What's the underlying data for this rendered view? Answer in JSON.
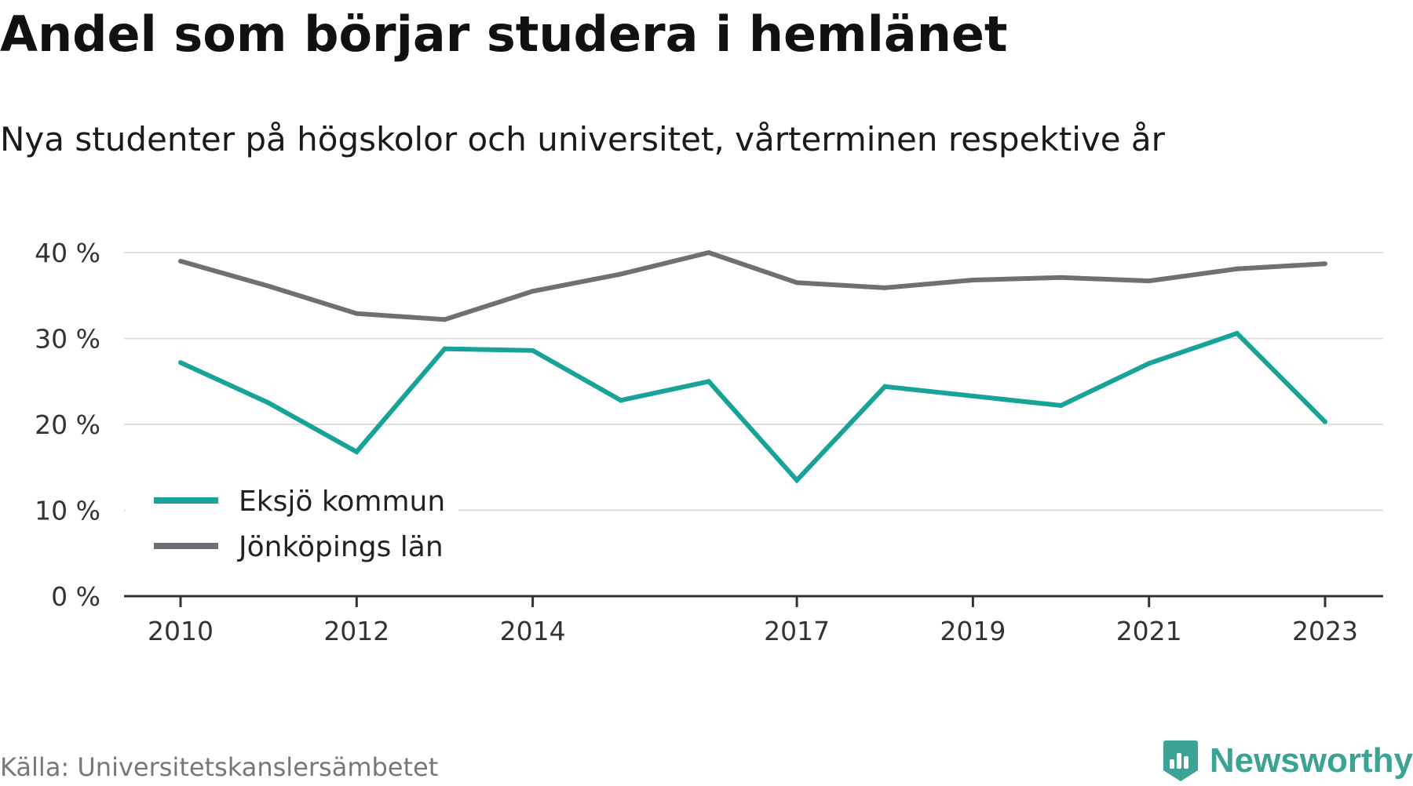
{
  "header": {
    "title": "Andel som börjar studera i hemlänet",
    "subtitle": "Nya studenter på högskolor och universitet, vårterminen respektive år"
  },
  "footer": {
    "source": "Källa: Universitetskanslersämbetet",
    "brand": "Newsworthy"
  },
  "colors": {
    "eksjo": "#17a398",
    "jonkoping": "#6f6f76",
    "grid": "#dddddd",
    "axis": "#333333",
    "brand": "#3aa394"
  },
  "chart_data": {
    "type": "line",
    "title": "Andel som börjar studera i hemlänet",
    "subtitle": "Nya studenter på högskolor och universitet, vårterminen respektive år",
    "xlabel": "",
    "ylabel": "",
    "x": [
      2010,
      2011,
      2012,
      2013,
      2014,
      2015,
      2016,
      2017,
      2018,
      2019,
      2020,
      2021,
      2022,
      2023
    ],
    "x_tick_labels": [
      "2010",
      "2012",
      "2014",
      "2017",
      "2019",
      "2021",
      "2023"
    ],
    "y_ticks": [
      0,
      10,
      20,
      30,
      40
    ],
    "y_tick_labels": [
      "0 %",
      "10 %",
      "20 %",
      "30 %",
      "40 %"
    ],
    "ylim": [
      0,
      40
    ],
    "grid": true,
    "legend_position": "bottom-left",
    "series": [
      {
        "name": "Eksjö kommun",
        "color": "#17a398",
        "values": [
          27.2,
          22.5,
          16.8,
          28.8,
          28.6,
          22.8,
          25.0,
          13.5,
          24.4,
          23.3,
          22.2,
          27.1,
          30.6,
          20.3
        ]
      },
      {
        "name": "Jönköpings län",
        "color": "#6f6f76",
        "values": [
          39.0,
          36.1,
          32.9,
          32.2,
          35.5,
          37.5,
          40.0,
          36.5,
          35.9,
          36.8,
          37.1,
          36.7,
          38.1,
          38.7
        ]
      }
    ]
  }
}
